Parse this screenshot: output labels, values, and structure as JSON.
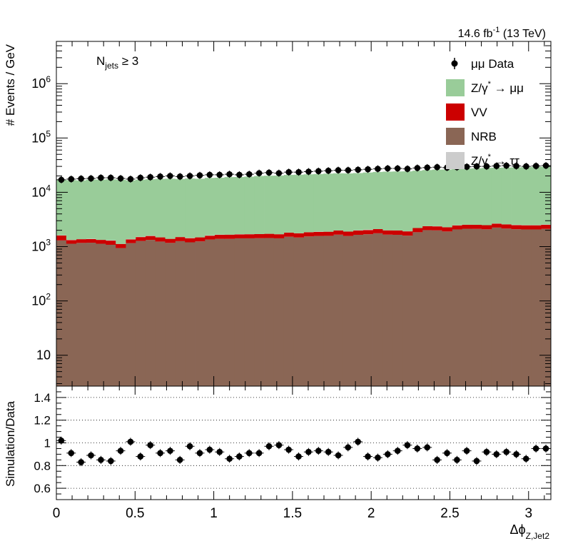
{
  "header": {
    "lumi_main": "14.6 fb",
    "lumi_sup": "-1",
    "lumi_energy": "(13 TeV)"
  },
  "annotation": {
    "njets_main": "N",
    "njets_sub": "jets",
    "njets_cond": "≥ 3"
  },
  "top_panel": {
    "ylabel": "# Events / GeV"
  },
  "ratio_panel": {
    "ylabel": "Simulation/Data"
  },
  "xaxis": {
    "label_main": "Δϕ",
    "label_sub": "Z,Jet2"
  },
  "legend": {
    "data": "μμ Data",
    "zmumu_main": "Z/γ",
    "zmumu_sup": "*",
    "zmumu_arrow": "→ μμ",
    "vv": "VV",
    "nrb": "NRB",
    "ztautau_main": "Z/γ",
    "ztautau_sup": "*",
    "ztautau_arrow": "→ ττ"
  },
  "colors": {
    "zmumu": "#99cc99",
    "vv": "#cc0000",
    "nrb": "#8a6655",
    "ztautau": "#cccccc",
    "data": "#000000"
  },
  "chart_data": [
    {
      "type": "bar",
      "stacked": true,
      "log_y": true,
      "xlim": [
        0,
        3.1416
      ],
      "ylim": [
        2.7,
        6000000
      ],
      "xticks": [
        0,
        0.5,
        1,
        1.5,
        2,
        2.5,
        3
      ],
      "yticks": [
        {
          "value": 10,
          "base": "10",
          "exp": ""
        },
        {
          "value": 100,
          "base": "10",
          "exp": "2"
        },
        {
          "value": 1000,
          "base": "10",
          "exp": "3"
        },
        {
          "value": 10000,
          "base": "10",
          "exp": "4"
        },
        {
          "value": 100000,
          "base": "10",
          "exp": "5"
        },
        {
          "value": 1000000,
          "base": "10",
          "exp": "6"
        }
      ],
      "ylabel": "# Events / GeV",
      "bins": 50,
      "legend_position": "top-right",
      "series": [
        {
          "name": "NRB",
          "key": "nrb",
          "values": [
            1300,
            1130,
            1170,
            1180,
            1130,
            1080,
            940,
            1160,
            1270,
            1330,
            1240,
            1170,
            1260,
            1200,
            1250,
            1350,
            1390,
            1390,
            1420,
            1420,
            1430,
            1440,
            1420,
            1520,
            1470,
            1540,
            1570,
            1580,
            1660,
            1570,
            1650,
            1690,
            1760,
            1660,
            1650,
            1590,
            1840,
            2010,
            1990,
            1900,
            2070,
            2130,
            2120,
            2080,
            2240,
            2150,
            2090,
            2070,
            2070,
            2120
          ]
        },
        {
          "name": "VV",
          "key": "vv",
          "values": [
            300,
            190,
            200,
            200,
            200,
            210,
            180,
            200,
            230,
            240,
            240,
            220,
            240,
            230,
            230,
            240,
            260,
            270,
            260,
            270,
            270,
            280,
            270,
            290,
            290,
            300,
            300,
            300,
            320,
            320,
            330,
            330,
            340,
            330,
            330,
            320,
            360,
            370,
            370,
            370,
            390,
            400,
            400,
            400,
            410,
            420,
            400,
            400,
            400,
            400
          ]
        },
        {
          "name": "Z/γ* → ττ",
          "key": "ztautau",
          "values": [
            18,
            15,
            0,
            18,
            0,
            19,
            0,
            18,
            17,
            18,
            0,
            0,
            0,
            13,
            0,
            20,
            16,
            0,
            19,
            6.5,
            0,
            0,
            0,
            0,
            0,
            0,
            18,
            0,
            0,
            0,
            20,
            36,
            0,
            0,
            0,
            0,
            0,
            0,
            18,
            0,
            18,
            0,
            0,
            0,
            18,
            0,
            36,
            18,
            17,
            34
          ]
        },
        {
          "name": "Z/γ* → μμ",
          "key": "zmumu",
          "values": [
            15200,
            15400,
            15200,
            15700,
            15800,
            16000,
            15900,
            15200,
            15600,
            15800,
            16200,
            16400,
            16100,
            16500,
            16300,
            16800,
            16900,
            17400,
            17400,
            17700,
            18300,
            18500,
            18600,
            19100,
            19300,
            19600,
            19800,
            20200,
            20400,
            20400,
            20600,
            21100,
            21600,
            22000,
            22200,
            22400,
            22800,
            23300,
            23800,
            24000,
            24500,
            24800,
            25100,
            25600,
            25700,
            26000,
            26300,
            26500,
            26900,
            27100
          ]
        },
        {
          "name": "μμ Data",
          "key": "data",
          "markers": true,
          "values": [
            17000,
            17500,
            17800,
            18000,
            18500,
            18500,
            18000,
            17500,
            18500,
            19000,
            19500,
            20000,
            19500,
            20000,
            20500,
            21000,
            21000,
            21500,
            21000,
            21500,
            22500,
            23000,
            22500,
            23500,
            23500,
            24000,
            24500,
            25000,
            25500,
            25500,
            26000,
            26500,
            27000,
            27500,
            27500,
            27000,
            28000,
            28500,
            29000,
            28500,
            29000,
            29500,
            30000,
            30000,
            30500,
            31000,
            30500,
            30000,
            30500,
            31000
          ]
        }
      ]
    },
    {
      "type": "scatter",
      "xlim": [
        0,
        3.1416
      ],
      "ylim": [
        0.5,
        1.5
      ],
      "xticks": [
        0,
        0.5,
        1,
        1.5,
        2,
        2.5,
        3
      ],
      "xtick_labels": [
        "0",
        "0.5",
        "1",
        "1.5",
        "2",
        "2.5",
        "3"
      ],
      "yticks": [
        0.6,
        0.8,
        1,
        1.2,
        1.4
      ],
      "ytick_labels": [
        "0.6",
        "0.8",
        "1",
        "1.2",
        "1.4"
      ],
      "grid": true,
      "ylabel": "Simulation/Data",
      "xlabel": "Δϕ Z,Jet2",
      "x": [
        0.031,
        0.094,
        0.157,
        0.22,
        0.283,
        0.346,
        0.408,
        0.471,
        0.534,
        0.597,
        0.66,
        0.723,
        0.785,
        0.848,
        0.911,
        0.974,
        1.037,
        1.1,
        1.162,
        1.225,
        1.288,
        1.351,
        1.414,
        1.476,
        1.539,
        1.602,
        1.665,
        1.728,
        1.791,
        1.853,
        1.916,
        1.979,
        2.042,
        2.105,
        2.168,
        2.23,
        2.293,
        2.356,
        2.419,
        2.482,
        2.545,
        2.607,
        2.67,
        2.733,
        2.796,
        2.859,
        2.922,
        2.984,
        3.047,
        3.11
      ],
      "y": [
        1.02,
        0.91,
        0.83,
        0.89,
        0.85,
        0.84,
        0.93,
        1.01,
        0.88,
        0.98,
        0.91,
        0.93,
        0.85,
        0.97,
        0.91,
        0.94,
        0.92,
        0.86,
        0.88,
        0.91,
        0.91,
        0.97,
        0.98,
        0.94,
        0.88,
        0.92,
        0.93,
        0.92,
        0.89,
        0.96,
        1.01,
        0.88,
        0.87,
        0.9,
        0.93,
        0.98,
        0.95,
        0.96,
        0.85,
        0.91,
        0.85,
        0.93,
        0.84,
        0.92,
        0.9,
        0.92,
        0.9,
        0.86,
        0.95,
        0.95
      ]
    }
  ]
}
